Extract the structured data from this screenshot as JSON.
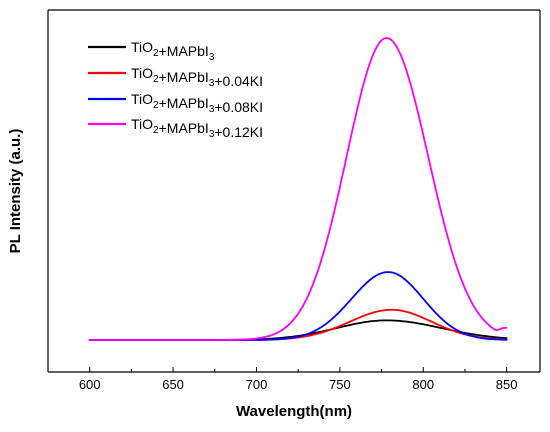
{
  "chart_data": {
    "type": "line",
    "xlabel": "Wavelength(nm)",
    "ylabel": "PL Intensity (a.u.)",
    "xlim": [
      575,
      870
    ],
    "ylim": [
      0,
      1
    ],
    "y_ticks_labeled": false,
    "x_ticks": [
      600,
      650,
      700,
      750,
      800,
      850
    ],
    "legend": {
      "placement": "top-left",
      "entries": [
        {
          "base": "TiO",
          "sub1": "2",
          "mid": "+MAPbI",
          "sub2": "3",
          "suffix": ""
        },
        {
          "base": "TiO",
          "sub1": "2",
          "mid": "+MAPbI",
          "sub2": "3",
          "suffix": "+0.04KI"
        },
        {
          "base": "TiO",
          "sub1": "2",
          "mid": "+MAPbI",
          "sub2": "3",
          "suffix": "+0.08KI"
        },
        {
          "base": "TiO",
          "sub1": "2",
          "mid": "+MAPbI",
          "sub2": "3",
          "suffix": "+0.12KI"
        }
      ]
    },
    "series": [
      {
        "name": "TiO2+MAPbI3",
        "color": "#000000",
        "baseline": 0.0,
        "peak_x": 778,
        "peak": 0.065,
        "sigma_left": 30,
        "sigma_right": 33
      },
      {
        "name": "TiO2+MAPbI3+0.04KI",
        "color": "#ff0000",
        "baseline": 0.0,
        "peak_x": 781,
        "peak": 0.1,
        "sigma_left": 25,
        "sigma_right": 24
      },
      {
        "name": "TiO2+MAPbI3+0.08KI",
        "color": "#0000ff",
        "baseline": 0.0,
        "peak_x": 779,
        "peak": 0.225,
        "sigma_left": 22,
        "sigma_right": 21
      },
      {
        "name": "TiO2+MAPbI3+0.12KI",
        "color": "#ff00ff",
        "baseline": 0.0,
        "peak_x": 778,
        "peak": 1.0,
        "sigma_left": 24,
        "sigma_right": 25,
        "end_value": 0.04
      }
    ]
  }
}
